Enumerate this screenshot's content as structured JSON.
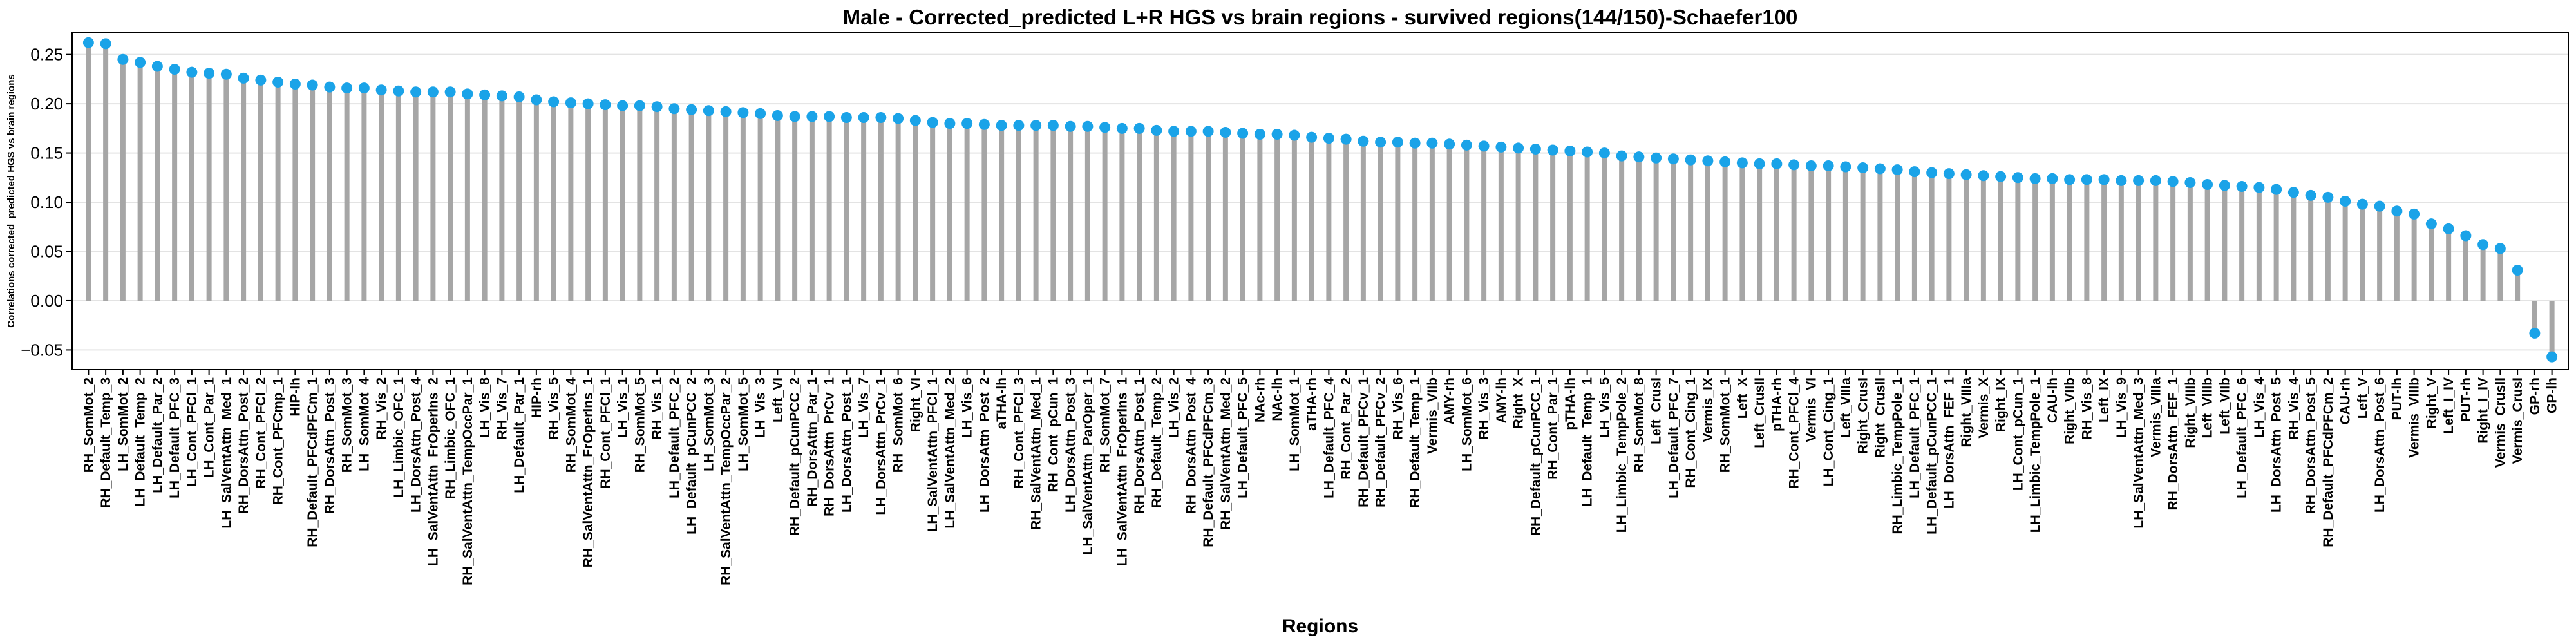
{
  "chart_data": {
    "type": "lollipop",
    "title": "Male - Corrected_predicted L+R HGS vs brain regions - survived regions(144/150)-Schaefer100",
    "xlabel": "Regions",
    "ylabel": "Correlations corrected_predicted HGS vs brain regions",
    "categories": [
      "RH_SomMot_2",
      "RH_Default_Temp_3",
      "LH_SomMot_2",
      "LH_Default_Temp_2",
      "LH_Default_Par_2",
      "LH_Default_PFC_3",
      "LH_Cont_PFCl_1",
      "LH_Cont_Par_1",
      "LH_SalVentAttn_Med_1",
      "RH_DorsAttn_Post_2",
      "RH_Cont_PFCl_2",
      "RH_Cont_PFCmp_1",
      "HIP-lh",
      "RH_Default_PFCdPFCm_1",
      "RH_DorsAttn_Post_3",
      "RH_SomMot_3",
      "LH_SomMot_4",
      "RH_Vis_2",
      "LH_Limbic_OFC_1",
      "LH_DorsAttn_Post_4",
      "LH_SalVentAttn_FrOperIns_2",
      "RH_Limbic_OFC_1",
      "RH_SalVentAttn_TempOccPar_1",
      "LH_Vis_8",
      "RH_Vis_7",
      "LH_Default_Par_1",
      "HIP-rh",
      "RH_Vis_5",
      "RH_SomMot_4",
      "RH_SalVentAttn_FrOperIns_1",
      "RH_Cont_PFCl_1",
      "LH_Vis_1",
      "RH_SomMot_5",
      "RH_Vis_1",
      "LH_Default_PFC_2",
      "LH_Default_pCunPCC_2",
      "LH_SomMot_3",
      "RH_SalVentAttn_TempOccPar_2",
      "LH_SomMot_5",
      "LH_Vis_3",
      "Left_VI",
      "RH_Default_pCunPCC_2",
      "RH_DorsAttn_Par_1",
      "RH_DorsAttn_PrCv_1",
      "LH_DorsAttn_Post_1",
      "LH_Vis_7",
      "LH_DorsAttn_PrCv_1",
      "RH_SomMot_6",
      "Right_VI",
      "LH_SalVentAttn_PFCl_1",
      "LH_SalVentAttn_Med_2",
      "LH_Vis_6",
      "LH_DorsAttn_Post_2",
      "aTHA-lh",
      "RH_Cont_PFCl_3",
      "RH_SalVentAttn_Med_1",
      "RH_Cont_pCun_1",
      "LH_DorsAttn_Post_3",
      "LH_SalVentAttn_ParOper_1",
      "RH_SomMot_7",
      "LH_SalVentAttn_FrOperIns_1",
      "RH_DorsAttn_Post_1",
      "RH_Default_Temp_2",
      "LH_Vis_2",
      "RH_DorsAttn_Post_4",
      "RH_Default_PFCdPFCm_3",
      "RH_SalVentAttn_Med_2",
      "LH_Default_PFC_5",
      "NAc-rh",
      "NAc-lh",
      "LH_SomMot_1",
      "aTHA-rh",
      "LH_Default_PFC_4",
      "RH_Cont_Par_2",
      "RH_Default_PFCv_1",
      "RH_Default_PFCv_2",
      "RH_Vis_6",
      "RH_Default_Temp_1",
      "Vermis_VIIb",
      "AMY-rh",
      "LH_SomMot_6",
      "RH_Vis_3",
      "AMY-lh",
      "Right_X",
      "RH_Default_pCunPCC_1",
      "RH_Cont_Par_1",
      "pTHA-lh",
      "LH_Default_Temp_1",
      "LH_Vis_5",
      "LH_Limbic_TempPole_2",
      "RH_SomMot_8",
      "Left_CrusI",
      "LH_Default_PFC_7",
      "RH_Cont_Cing_1",
      "Vermis_IX",
      "RH_SomMot_1",
      "Left_X",
      "Left_CrusII",
      "pTHA-rh",
      "RH_Cont_PFCl_4",
      "Vermis_VI",
      "LH_Cont_Cing_1",
      "Left_VIIIa",
      "Right_CrusI",
      "Right_CrusII",
      "RH_Limbic_TempPole_1",
      "LH_Default_PFC_1",
      "LH_Default_pCunPCC_1",
      "LH_DorsAttn_FEF_1",
      "Right_VIIIa",
      "Vermis_X",
      "Right_IX",
      "LH_Cont_pCun_1",
      "LH_Limbic_TempPole_1",
      "CAU-lh",
      "Right_VIIb",
      "RH_Vis_8",
      "Left_IX",
      "LH_Vis_9",
      "LH_SalVentAttn_Med_3",
      "Vermis_VIIIa",
      "RH_DorsAttn_FEF_1",
      "Right_VIIIb",
      "Left_VIIIb",
      "Left_VIIb",
      "LH_Default_PFC_6",
      "LH_Vis_4",
      "LH_DorsAttn_Post_5",
      "RH_Vis_4",
      "RH_DorsAttn_Post_5",
      "RH_Default_PFCdPFCm_2",
      "CAU-rh",
      "Left_V",
      "LH_DorsAttn_Post_6",
      "PUT-lh",
      "Vermis_VIIIb",
      "Right_V",
      "Left_I_IV",
      "PUT-rh",
      "Right_I_IV",
      "Vermis_CrusII",
      "Vermis_CrusI",
      "GP-rh",
      "GP-lh"
    ],
    "values": [
      0.262,
      0.261,
      0.245,
      0.242,
      0.238,
      0.235,
      0.232,
      0.231,
      0.23,
      0.226,
      0.224,
      0.222,
      0.22,
      0.219,
      0.217,
      0.216,
      0.216,
      0.214,
      0.213,
      0.212,
      0.212,
      0.212,
      0.21,
      0.209,
      0.208,
      0.207,
      0.204,
      0.202,
      0.201,
      0.2,
      0.199,
      0.198,
      0.198,
      0.197,
      0.195,
      0.194,
      0.193,
      0.192,
      0.191,
      0.19,
      0.188,
      0.187,
      0.187,
      0.187,
      0.186,
      0.186,
      0.186,
      0.185,
      0.183,
      0.181,
      0.18,
      0.18,
      0.179,
      0.178,
      0.178,
      0.178,
      0.178,
      0.177,
      0.177,
      0.176,
      0.175,
      0.175,
      0.173,
      0.172,
      0.172,
      0.172,
      0.171,
      0.17,
      0.169,
      0.169,
      0.168,
      0.166,
      0.165,
      0.164,
      0.162,
      0.161,
      0.161,
      0.16,
      0.16,
      0.159,
      0.158,
      0.157,
      0.156,
      0.155,
      0.154,
      0.153,
      0.152,
      0.151,
      0.15,
      0.147,
      0.146,
      0.145,
      0.144,
      0.143,
      0.142,
      0.141,
      0.14,
      0.139,
      0.139,
      0.138,
      0.137,
      0.137,
      0.136,
      0.135,
      0.134,
      0.133,
      0.131,
      0.13,
      0.129,
      0.128,
      0.127,
      0.126,
      0.125,
      0.124,
      0.124,
      0.123,
      0.123,
      0.123,
      0.122,
      0.122,
      0.122,
      0.121,
      0.12,
      0.118,
      0.117,
      0.116,
      0.115,
      0.113,
      0.11,
      0.107,
      0.105,
      0.101,
      0.098,
      0.096,
      0.091,
      0.088,
      0.078,
      0.073,
      0.066,
      0.057,
      0.053,
      0.031,
      -0.033,
      -0.057
    ],
    "color": "#1aa3e8",
    "stem_color": "#a6a6a6",
    "ylim": [
      -0.07,
      0.272
    ],
    "yticks": [
      {
        "value": -0.05,
        "label": "−0.05"
      },
      {
        "value": 0,
        "label": "0.00"
      },
      {
        "value": 0.05,
        "label": "0.05"
      },
      {
        "value": 0.1,
        "label": "0.10"
      },
      {
        "value": 0.15,
        "label": "0.15"
      },
      {
        "value": 0.2,
        "label": "0.20"
      },
      {
        "value": 0.25,
        "label": "0.25"
      }
    ],
    "grid": true
  }
}
